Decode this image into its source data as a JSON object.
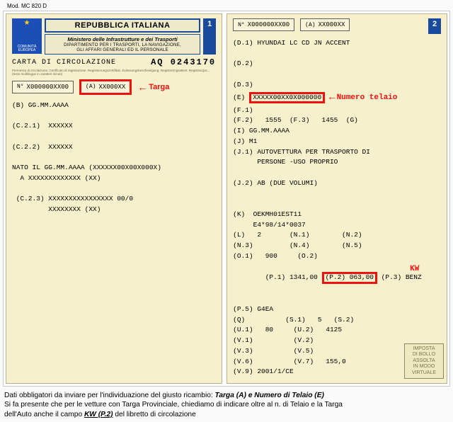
{
  "mod_label": "Mod. MC 820 D",
  "left": {
    "page_no": "1",
    "country": "REPUBBLICA ITALIANA",
    "ministry_line1": "Ministero delle Infrastrutture e dei Trasporti",
    "ministry_line2": "DIPARTIMENTO PER I TRASPORTI, LA NAVIGAZIONE,",
    "ministry_line3": "GLI AFFARI GENERALI ED IL PERSONALE",
    "eu_label_top": "COMUNITÀ",
    "eu_label_bottom": "EUROPEA",
    "carta": "CARTA DI CIRCOLAZIONE",
    "doc_number": "AQ 0243170",
    "fineprint": "Permesso di circolazione. Certificato di registrazione. Registrierungszertifikat. Zulassungsbescheinigung. Registreringsattest. Registracijos... (testo multilingue in caratteri minuti)",
    "box_n_key": "N°",
    "box_n_val": "X000000XX00",
    "box_a_key": "(A)",
    "box_a_val": "XX000XX",
    "targa_label": "Targa",
    "lines": [
      "(B) GG.MM.AAAA",
      "",
      "(C.2.1)  XXXXXX",
      "",
      "(C.2.2)  XXXXXX",
      "",
      "NATO IL GG.MM.AAAA (XXXXXX00X00X000X)",
      "  A XXXXXXXXXXXXX (XX)",
      "",
      " (C.2.3) XXXXXXXXXXXXXXXX 00/0",
      "         XXXXXXXX (XX)"
    ]
  },
  "right": {
    "page_no": "2",
    "box_n_key": "N°",
    "box_n_val": "X000000XX00",
    "box_a_key": "(A)",
    "box_a_val": "XX000XX",
    "telaio_label": "Numero telaio",
    "kw_label": "KW",
    "lines_top": [
      "(D.1) HYUNDAI LC CD JN ACCENT",
      "",
      "(D.2)",
      "",
      "(D.3)"
    ],
    "line_e_key": "(E)",
    "line_e_val": "XXXXX00XX0X000000",
    "lines_mid": [
      "(F.1)",
      "(F.2)   1555  (F.3)   1455  (G)",
      "(I) GG.MM.AAAA",
      "(J) M1",
      "(J.1) AUTOVETTURA PER TRASPORTO DI",
      "      PERSONE -USO PROPRIO",
      "",
      "(J.2) AB (DUE VOLUMI)",
      "",
      "",
      "(K)  OEKMH01EST11",
      "     E4*98/14*0037",
      "(L)   2       (N.1)        (N.2)",
      "(N.3)         (N.4)        (N.5)",
      "(O.1)   900     (O.2)"
    ],
    "line_p_pre": "(P.1) 1341,00 ",
    "line_p_box": "(P.2) 063,00",
    "line_p_post": " (P.3) BENZ",
    "lines_bot": [
      "(P.5) G4EA",
      "(Q)          (S.1)   5   (S.2)",
      "(U.1)   80     (U.2)   4125",
      "(V.1)          (V.2)",
      "(V.3)          (V.5)",
      "(V.6)          (V.7)   155,0",
      "(V.9) 2001/1/CE"
    ],
    "stamp": [
      "IMPOSTA",
      "DI BOLLO",
      "ASSOLTA",
      "IN MODO",
      "VIRTUALE"
    ]
  },
  "footer": {
    "l1a": "Dati obbligatori da inviare per l'individuazione del giusto ricambio: ",
    "l1b": "Targa (A) e Numero di Telaio (E)",
    "l2": "Si fa presente che per le vetture con Targa Provinciale, chiediamo di indicare oltre al n. di Telaio e la Targa",
    "l3a": "dell'Auto anche il campo ",
    "l3b": "KW (P.2)",
    "l3c": " del libretto di circolazione"
  },
  "colors": {
    "highlight": "#e01b1b",
    "card_bg": "#f6f0cc",
    "eu_blue": "#1c4fb5"
  }
}
